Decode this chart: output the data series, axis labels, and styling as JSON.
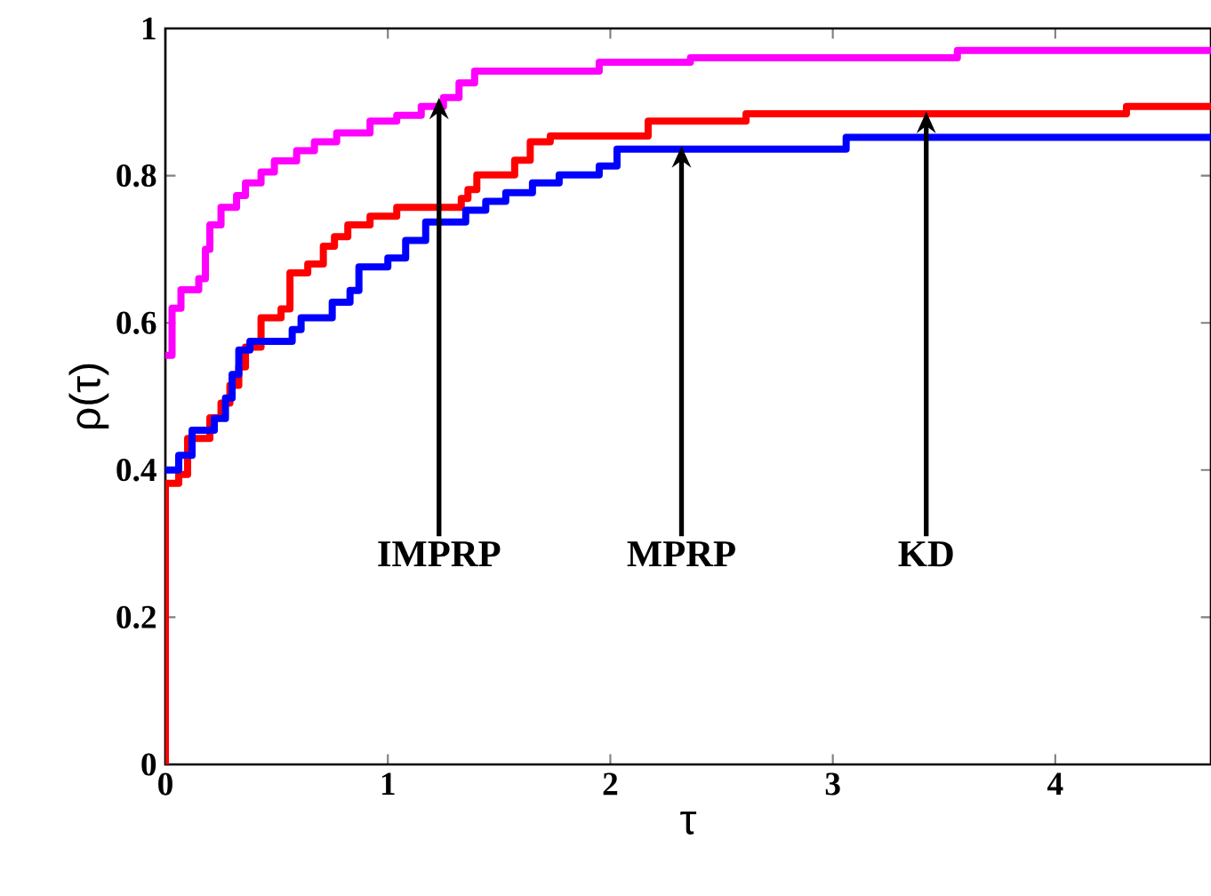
{
  "chart_data": {
    "type": "step",
    "xlabel": "τ",
    "ylabel": "ρ(τ)",
    "xlim": [
      0,
      4.7
    ],
    "ylim": [
      0,
      1
    ],
    "xticks": [
      0,
      1,
      2,
      3,
      4
    ],
    "yticks": [
      0,
      0.2,
      0.4,
      0.6,
      0.8,
      1
    ],
    "grid": false,
    "marker": "none",
    "line_style": "solid",
    "series": [
      {
        "color": "#ff00ff",
        "x": [
          0,
          0.03,
          0.07,
          0.15,
          0.18,
          0.2,
          0.25,
          0.32,
          0.36,
          0.43,
          0.49,
          0.59,
          0.67,
          0.77,
          0.92,
          1.04,
          1.15,
          1.25,
          1.32,
          1.39,
          1.95,
          2.36,
          3.56,
          4.7
        ],
        "values": [
          0.556,
          0.62,
          0.645,
          0.66,
          0.7,
          0.733,
          0.757,
          0.773,
          0.79,
          0.805,
          0.82,
          0.834,
          0.846,
          0.858,
          0.874,
          0.882,
          0.894,
          0.906,
          0.926,
          0.942,
          0.954,
          0.96,
          0.97,
          0.97
        ]
      },
      {
        "color": "#ff0000",
        "x": [
          0,
          0,
          0.06,
          0.1,
          0.2,
          0.25,
          0.29,
          0.33,
          0.36,
          0.43,
          0.52,
          0.56,
          0.64,
          0.71,
          0.76,
          0.82,
          0.92,
          1.04,
          1.33,
          1.36,
          1.4,
          1.57,
          1.64,
          1.73,
          2.17,
          2.61,
          4.32,
          4.7
        ],
        "values": [
          0,
          0.382,
          0.394,
          0.443,
          0.471,
          0.491,
          0.515,
          0.54,
          0.567,
          0.607,
          0.619,
          0.668,
          0.68,
          0.704,
          0.717,
          0.733,
          0.745,
          0.757,
          0.769,
          0.781,
          0.801,
          0.821,
          0.846,
          0.854,
          0.874,
          0.884,
          0.894,
          0.894
        ]
      },
      {
        "color": "#0000ff",
        "x": [
          0,
          0.06,
          0.12,
          0.22,
          0.27,
          0.3,
          0.33,
          0.38,
          0.57,
          0.61,
          0.75,
          0.83,
          0.87,
          1.0,
          1.08,
          1.17,
          1.35,
          1.44,
          1.53,
          1.65,
          1.77,
          1.95,
          2.03,
          3.06,
          4.7
        ],
        "values": [
          0.4,
          0.42,
          0.454,
          0.47,
          0.498,
          0.53,
          0.563,
          0.575,
          0.591,
          0.607,
          0.628,
          0.644,
          0.676,
          0.688,
          0.712,
          0.737,
          0.753,
          0.765,
          0.777,
          0.79,
          0.801,
          0.813,
          0.836,
          0.852,
          0.852
        ]
      }
    ],
    "annotations": [
      {
        "text": "IMPRP",
        "x": 1.23,
        "y": 0.906
      },
      {
        "text": "MPRP",
        "x": 2.32,
        "y": 0.84
      },
      {
        "text": "KD",
        "x": 3.42,
        "y": 0.887
      }
    ]
  }
}
